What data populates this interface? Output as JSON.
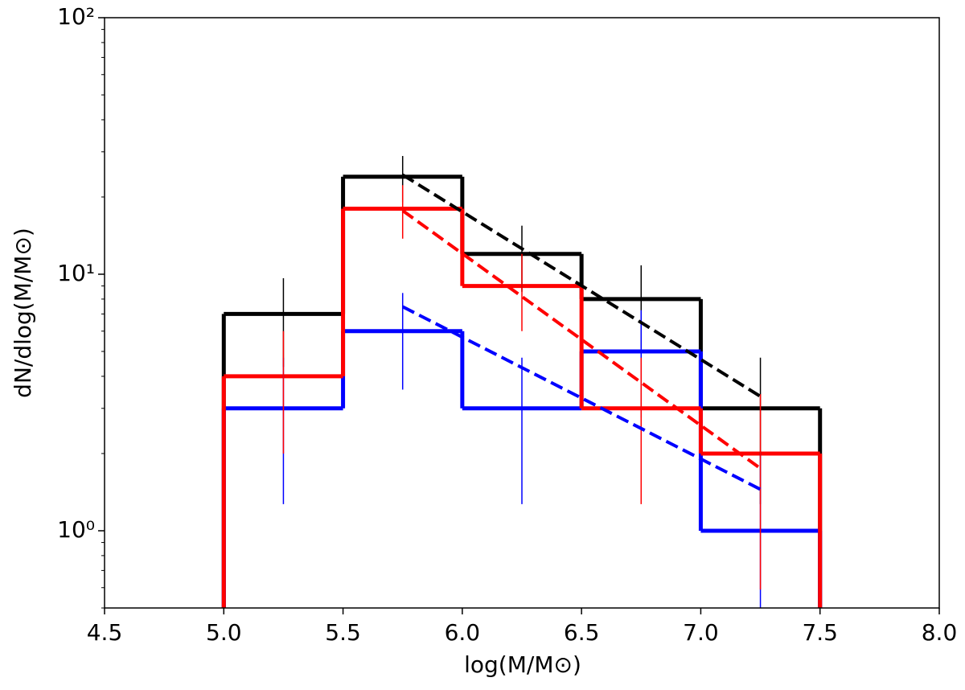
{
  "chart_data": {
    "type": "histogram",
    "x_label": "log(M/M⊙)",
    "y_label": "dN/dlog(M/M⊙)",
    "bins": [
      5.0,
      5.5,
      6.0,
      6.5,
      7.0,
      7.5
    ],
    "series": [
      {
        "color": "#000000",
        "values": [
          7,
          24,
          12,
          8,
          3
        ],
        "errors": [
          2.65,
          4.9,
          3.46,
          2.83,
          1.73
        ]
      },
      {
        "color": "#0000ff",
        "values": [
          3,
          6,
          3,
          5,
          1
        ],
        "errors": [
          1.73,
          2.45,
          1.73,
          2.24,
          1
        ]
      },
      {
        "color": "#ff0000",
        "values": [
          4,
          18,
          9,
          3,
          2
        ],
        "errors": [
          2,
          4.24,
          3,
          1.73,
          1.41
        ]
      }
    ],
    "fits": [
      {
        "color": "#000000",
        "x": [
          5.75,
          7.25
        ],
        "values": [
          24.4,
          3.34
        ]
      },
      {
        "color": "#ff0000",
        "x": [
          5.75,
          7.25
        ],
        "values": [
          17.7,
          1.75
        ]
      },
      {
        "color": "#0000ff",
        "x": [
          5.75,
          7.25
        ],
        "values": [
          7.47,
          1.45
        ]
      }
    ],
    "xlim": [
      4.5,
      8.0
    ],
    "xticks": [
      4.5,
      {
        "value": 5.0,
        "label": "5.0"
      },
      5.5,
      {
        "value": 6.0,
        "label": "6.0"
      },
      6.5,
      {
        "value": 7.0,
        "label": "7.0"
      },
      7.5,
      {
        "value": 8.0,
        "label": "8.0"
      }
    ],
    "ylim": [
      0.5,
      100
    ],
    "y_scale": "log",
    "yticks": [
      {
        "value": 1,
        "label": "10⁰"
      },
      {
        "value": 10,
        "label": "10¹"
      },
      {
        "value": 100,
        "label": "10²"
      }
    ],
    "yminorticks": [
      0.5,
      0.6,
      0.7,
      0.8,
      0.9,
      2,
      3,
      4,
      5,
      6,
      7,
      8,
      9,
      20,
      30,
      40,
      50,
      60,
      70,
      80,
      90
    ]
  }
}
